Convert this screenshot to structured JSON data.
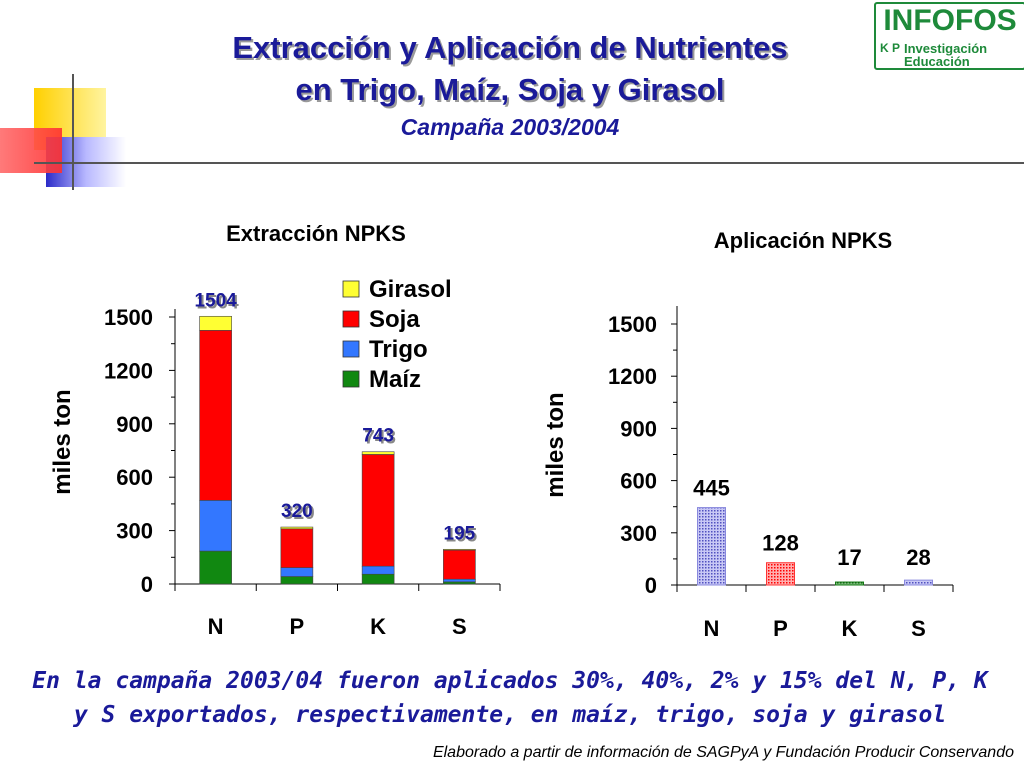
{
  "header": {
    "title_line1": "Extracción y Aplicación de Nutrientes",
    "title_line2": "en Trigo, Maíz, Soja y Girasol",
    "subtitle": "Campaña 2003/2004"
  },
  "logo": {
    "name": "INFOFOS",
    "kp": "K P",
    "line1": "Investigación",
    "line2": "Educación",
    "color": "#1e8a3a"
  },
  "colors": {
    "title": "#1a1a99",
    "girasol": "#ffff33",
    "soja": "#ff0000",
    "trigo": "#3377ff",
    "maiz": "#118811",
    "aplic_n": "#8888dd",
    "aplic_p": "#ff3333",
    "aplic_k": "#117711",
    "aplic_s": "#8888dd"
  },
  "chart_data": [
    {
      "type": "bar",
      "stacked": true,
      "title": "Extracción NPKS",
      "ylabel": "miles ton",
      "xlabel": "",
      "categories": [
        "N",
        "P",
        "K",
        "S"
      ],
      "ylim": [
        0,
        1500
      ],
      "yticks": [
        "0",
        "300",
        "600",
        "900",
        "1200",
        "1500"
      ],
      "series": [
        {
          "name": "Maíz",
          "values": [
            185,
            42,
            55,
            12
          ]
        },
        {
          "name": "Trigo",
          "values": [
            285,
            50,
            45,
            15
          ]
        },
        {
          "name": "Soja",
          "values": [
            955,
            218,
            628,
            163
          ]
        },
        {
          "name": "Girasol",
          "values": [
            79,
            10,
            15,
            5
          ]
        }
      ],
      "totals": [
        "1504",
        "320",
        "743",
        "195"
      ],
      "legend": [
        "Girasol",
        "Soja",
        "Trigo",
        "Maíz"
      ],
      "legend_position": "top-right"
    },
    {
      "type": "bar",
      "title": "Aplicación NPKS",
      "ylabel": "miles ton",
      "xlabel": "",
      "categories": [
        "N",
        "P",
        "K",
        "S"
      ],
      "ylim": [
        0,
        1500
      ],
      "yticks": [
        "0",
        "300",
        "600",
        "900",
        "1200",
        "1500"
      ],
      "values": [
        445,
        128,
        17,
        28
      ],
      "labels": [
        "445",
        "128",
        "17",
        "28"
      ]
    }
  ],
  "footnote": "En la campaña 2003/04 fueron aplicados 30%, 40%, 2% y 15% del N, P, K y S exportados, respectivamente, en maíz, trigo, soja y girasol",
  "source": "Elaborado a partir de información de SAGPyA y Fundación Producir Conservando"
}
